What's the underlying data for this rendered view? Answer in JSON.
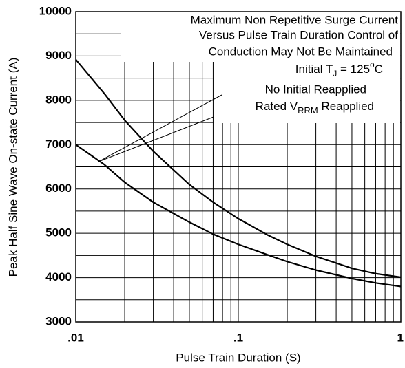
{
  "chart_data": {
    "type": "line",
    "ylabel": "Peak Half Sine Wave On-state Current (A)",
    "xlabel": "Pulse Train Duration (S)",
    "xscale": "log",
    "xlim": [
      0.01,
      1
    ],
    "ylim": [
      3000,
      10000
    ],
    "xticks": [
      {
        "value": 0.01,
        "label": ".01"
      },
      {
        "value": 0.1,
        "label": ".1"
      },
      1
    ],
    "yticks": [
      3000,
      4000,
      5000,
      6000,
      7000,
      8000,
      9000,
      10000
    ],
    "xminor": [
      0.02,
      0.03,
      0.04,
      0.05,
      0.06,
      0.07,
      0.08,
      0.09,
      0.2,
      0.3,
      0.4,
      0.5,
      0.6,
      0.7,
      0.8,
      0.9
    ],
    "yminor": [
      3500,
      4500,
      5500,
      6500,
      7500,
      8500,
      9500
    ],
    "grid": true,
    "x": [
      0.01,
      0.015,
      0.02,
      0.03,
      0.05,
      0.07,
      0.1,
      0.15,
      0.2,
      0.3,
      0.5,
      0.7,
      1
    ],
    "series": [
      {
        "color": "#000000",
        "values": [
          8920,
          8150,
          7550,
          6850,
          6100,
          5700,
          5330,
          4970,
          4750,
          4480,
          4210,
          4090,
          4010
        ]
      },
      {
        "color": "#000000",
        "values": [
          7000,
          6550,
          6150,
          5700,
          5250,
          4980,
          4750,
          4520,
          4360,
          4170,
          3980,
          3880,
          3800
        ]
      }
    ],
    "annotations": {
      "line1": "Maximum Non Repetitive Surge Current",
      "line2": "Versus Pulse Train Duration Control of",
      "line3": "Conduction May Not Be Maintained",
      "line4": {
        "a": "Initial T",
        "sub": "J",
        "b": " = 125",
        "sup": "o",
        "c": "C"
      },
      "line5": "No Initial Reapplied",
      "line6": {
        "a": "Rated V",
        "sub": "RRM",
        "b": " Reapplied"
      }
    }
  }
}
